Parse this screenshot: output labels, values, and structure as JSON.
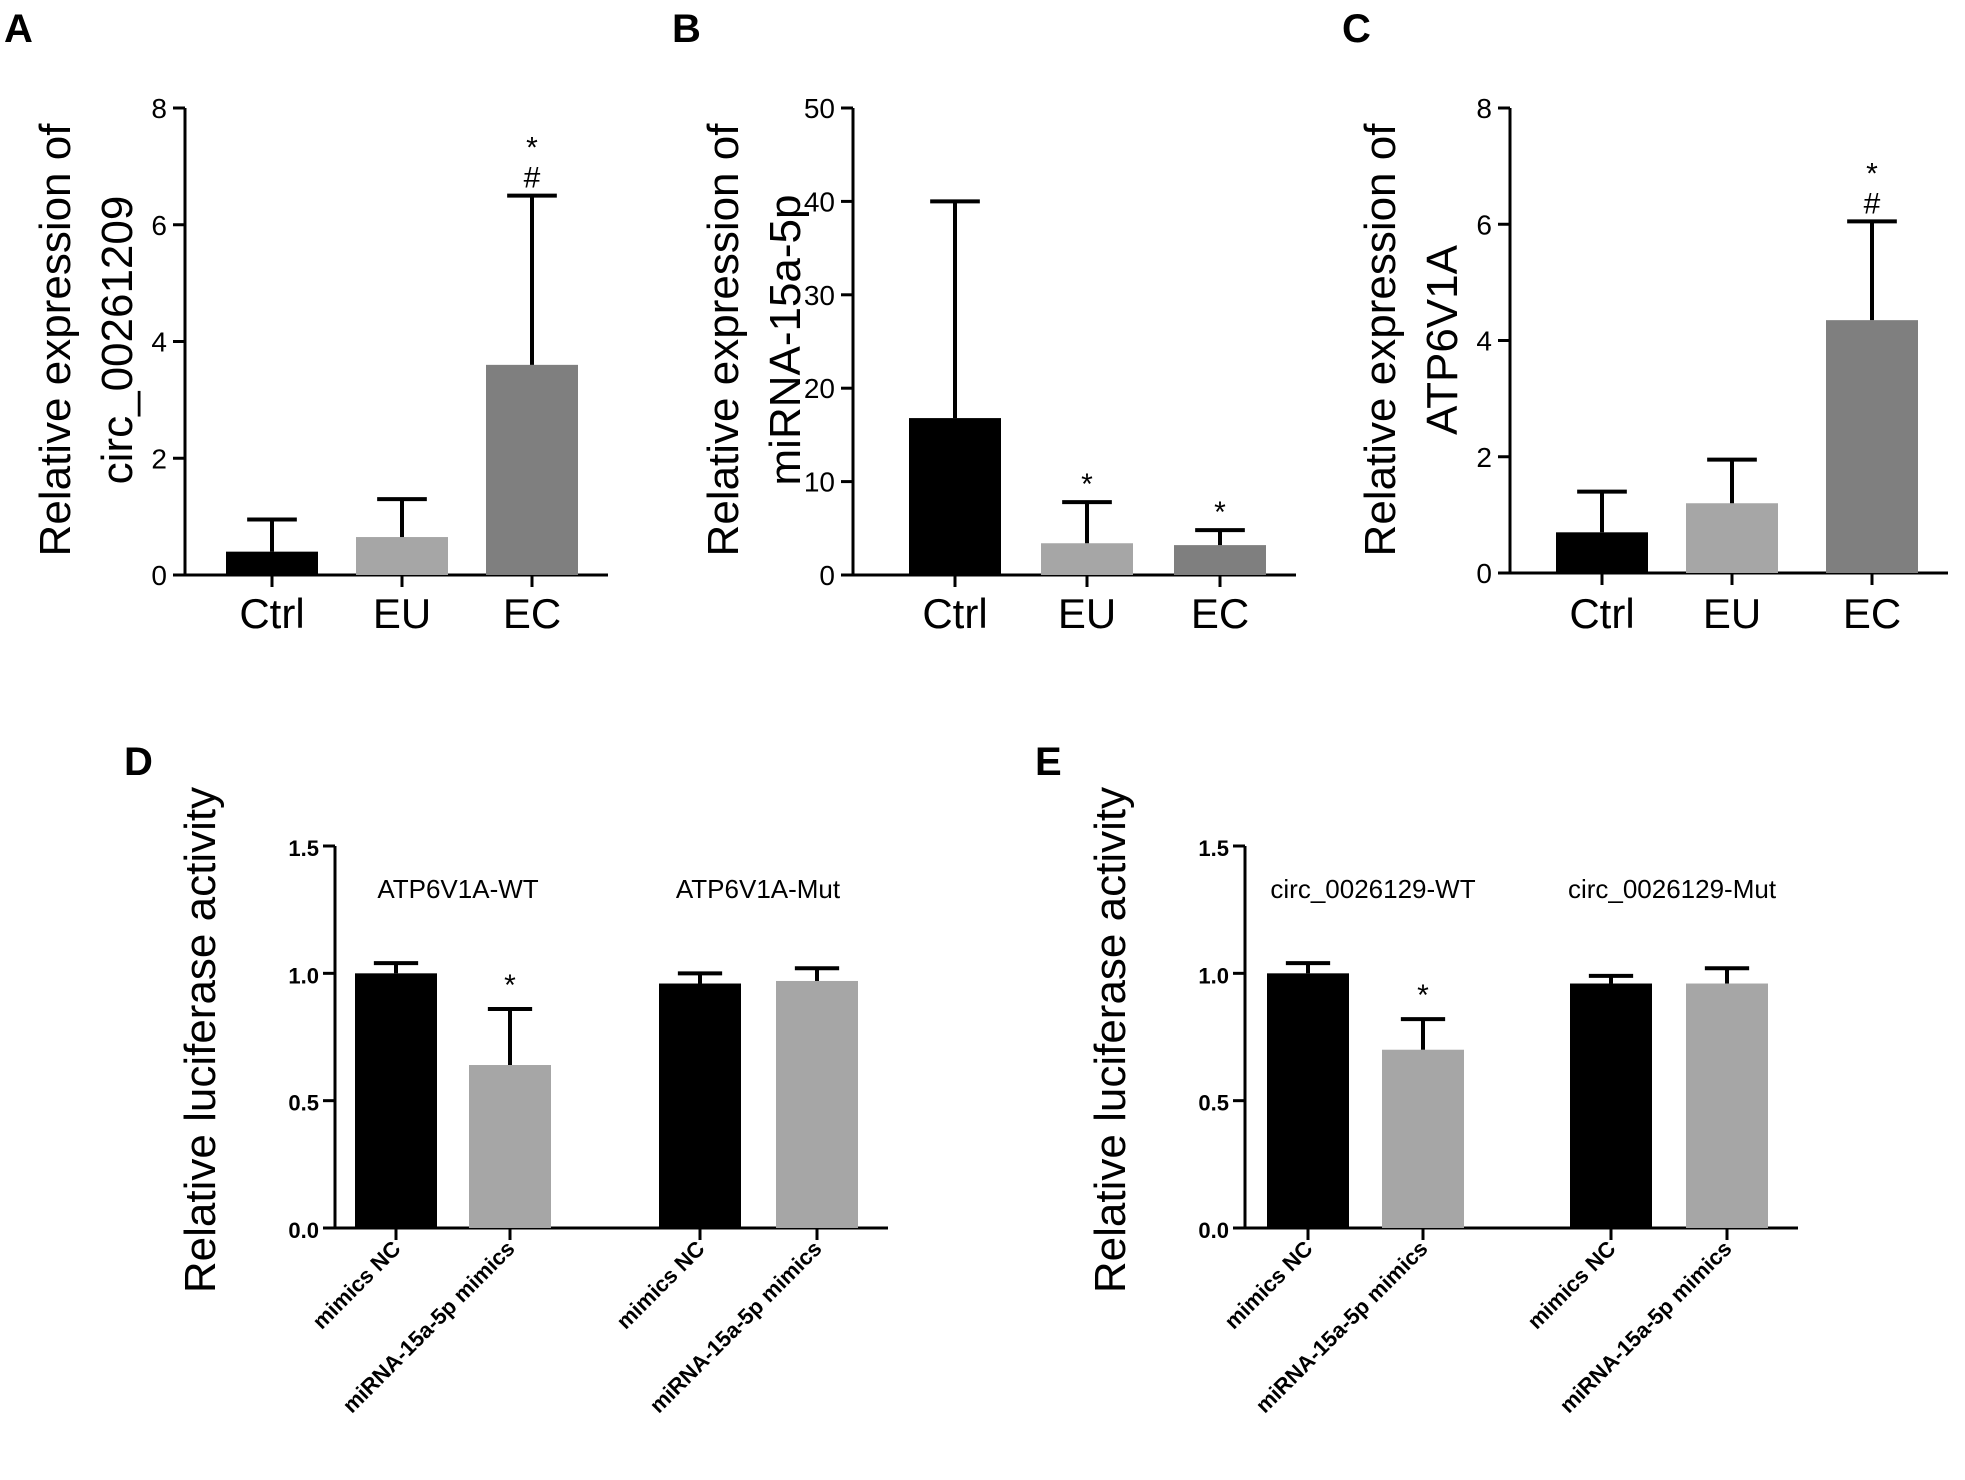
{
  "chart_data": [
    {
      "panel": "A",
      "type": "bar",
      "categories": [
        "Ctrl",
        "EU",
        "EC"
      ],
      "values": [
        0.4,
        0.65,
        3.6
      ],
      "errors": [
        0.55,
        0.65,
        2.9
      ],
      "colors": [
        "#000000",
        "#a6a6a6",
        "#7f7f7f"
      ],
      "significance": [
        "",
        "",
        "*\n#"
      ],
      "ylabel": "Relative expression of\ncirc_00261209",
      "ylim": [
        0,
        8
      ],
      "yticks": [
        0,
        2,
        4,
        6,
        8
      ],
      "ytick_labels": [
        "0",
        "2",
        "4",
        "6",
        "8"
      ]
    },
    {
      "panel": "B",
      "type": "bar",
      "categories": [
        "Ctrl",
        "EU",
        "EC"
      ],
      "values": [
        16.8,
        3.4,
        3.2
      ],
      "errors": [
        23.2,
        4.4,
        1.6
      ],
      "colors": [
        "#000000",
        "#a6a6a6",
        "#7f7f7f"
      ],
      "significance": [
        "",
        "*",
        "*"
      ],
      "ylabel": "Relative expression of\nmiRNA-15a-5p",
      "ylim": [
        0,
        50
      ],
      "yticks": [
        0,
        10,
        20,
        30,
        40,
        50
      ],
      "ytick_labels": [
        "0",
        "10",
        "20",
        "30",
        "40",
        "50"
      ]
    },
    {
      "panel": "C",
      "type": "bar",
      "categories": [
        "Ctrl",
        "EU",
        "EC"
      ],
      "values": [
        0.7,
        1.2,
        4.35
      ],
      "errors": [
        0.7,
        0.75,
        1.7
      ],
      "colors": [
        "#000000",
        "#a6a6a6",
        "#7f7f7f"
      ],
      "significance": [
        "",
        "",
        "*\n#"
      ],
      "ylabel": "Relative expression of\nATP6V1A",
      "ylim": [
        0,
        8
      ],
      "yticks": [
        0,
        2,
        4,
        6,
        8
      ],
      "ytick_labels": [
        "0",
        "2",
        "4",
        "6",
        "8"
      ]
    },
    {
      "panel": "D",
      "type": "bar",
      "groups": [
        "ATP6V1A-WT",
        "ATP6V1A-Mut"
      ],
      "categories": [
        "mimics NC",
        "miRNA-15a-5p mimics",
        "mimics NC",
        "miRNA-15a-5p mimics"
      ],
      "values": [
        1.0,
        0.64,
        0.96,
        0.97
      ],
      "errors": [
        0.04,
        0.22,
        0.04,
        0.05
      ],
      "colors": [
        "#000000",
        "#a6a6a6",
        "#000000",
        "#a6a6a6"
      ],
      "significance": [
        "",
        "*",
        "",
        ""
      ],
      "ylabel": "Relative luciferase activity",
      "ylim": [
        0,
        1.5
      ],
      "yticks": [
        0,
        0.5,
        1.0,
        1.5
      ],
      "ytick_labels": [
        "0.0",
        "0.5",
        "1.0",
        "1.5"
      ]
    },
    {
      "panel": "E",
      "type": "bar",
      "groups": [
        "circ_0026129-WT",
        "circ_0026129-Mut"
      ],
      "categories": [
        "mimics NC",
        "miRNA-15a-5p mimics",
        "mimics NC",
        "miRNA-15a-5p mimics"
      ],
      "values": [
        1.0,
        0.7,
        0.96,
        0.96
      ],
      "errors": [
        0.04,
        0.12,
        0.03,
        0.06
      ],
      "colors": [
        "#000000",
        "#a6a6a6",
        "#000000",
        "#a6a6a6"
      ],
      "significance": [
        "",
        "*",
        "",
        ""
      ],
      "ylabel": "Relative luciferase activity",
      "ylim": [
        0,
        1.5
      ],
      "yticks": [
        0,
        0.5,
        1.0,
        1.5
      ],
      "ytick_labels": [
        "0.0",
        "0.5",
        "1.0",
        "1.5"
      ]
    }
  ]
}
